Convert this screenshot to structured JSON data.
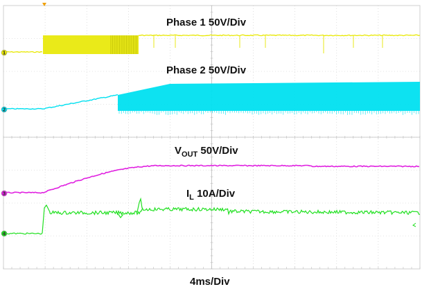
{
  "chart_data": {
    "type": "line",
    "title": "",
    "xlabel": "4ms/Div",
    "ylabel": "",
    "grid": true,
    "x_divisions": 10,
    "y_divisions": 8,
    "x_unit": "ms",
    "ms_per_div": 4,
    "x_range_ms": [
      0,
      40
    ],
    "series": [
      {
        "id": "ch1",
        "label_main": "Phase 1 50V/Div",
        "label_sub": "",
        "color": "#e8e800",
        "description": "switching node, burst from ~2 ms to ~7.4 ms then light pulses",
        "volts_per_div": 50
      },
      {
        "id": "ch2",
        "label_main": "Phase 2 50V/Div",
        "label_sub": "",
        "color": "#00e0f0",
        "volts_per_div": 50
      },
      {
        "id": "ch3",
        "label_main": "V",
        "label_sub": "OUT",
        "label_suffix": " 50V/Div",
        "color": "#e020e0",
        "volts_per_div": 50
      },
      {
        "id": "ch4",
        "label_main": "I",
        "label_sub": "L",
        "label_suffix": " 10A/Div",
        "color": "#20e020",
        "amps_per_div": 10
      }
    ],
    "trigger_marker_color": "#f0a000",
    "channel_markers": [
      "1",
      "2",
      "3",
      "4"
    ]
  }
}
